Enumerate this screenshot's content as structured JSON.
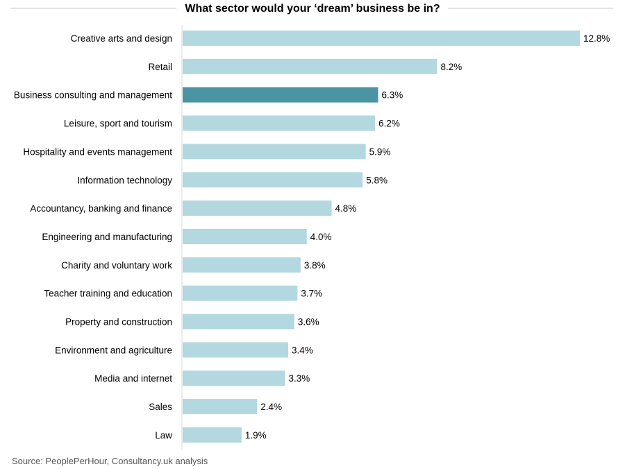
{
  "chart_data": {
    "type": "bar",
    "orientation": "horizontal",
    "title": "What sector would your ‘dream’ business be in?",
    "categories": [
      "Creative arts and design",
      "Retail",
      "Business consulting and management",
      "Leisure, sport and tourism",
      "Hospitality and events management",
      "Information technology",
      "Accountancy, banking and finance",
      "Engineering and manufacturing",
      "Charity and voluntary work",
      "Teacher training and education",
      "Property and construction",
      "Environment and agriculture",
      "Media and internet",
      "Sales",
      "Law"
    ],
    "values": [
      12.8,
      8.2,
      6.3,
      6.2,
      5.9,
      5.8,
      4.8,
      4.0,
      3.8,
      3.7,
      3.6,
      3.4,
      3.3,
      2.4,
      1.9
    ],
    "value_labels": [
      "12.8%",
      "8.2%",
      "6.3%",
      "6.2%",
      "5.9%",
      "5.8%",
      "4.8%",
      "4.0%",
      "3.8%",
      "3.7%",
      "3.6%",
      "3.4%",
      "3.3%",
      "2.4%",
      "1.9%"
    ],
    "highlight_index": 2,
    "colors": {
      "bar": "#b3d8df",
      "highlight": "#4a94a3"
    },
    "xlim": [
      0,
      12.8
    ],
    "grid": false
  },
  "source": "Source: PeoplePerHour, Consultancy.uk analysis"
}
